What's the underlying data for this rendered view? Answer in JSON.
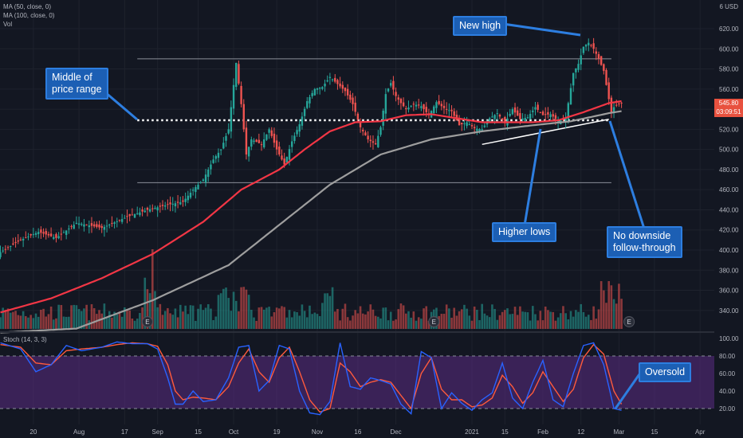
{
  "legend": {
    "ma50": "MA (50, close, 0)",
    "ma100": "MA (100, close, 0)",
    "vol": "Vol",
    "stoch": "Stoch (14, 3, 3)"
  },
  "currency": "USD",
  "price_tag": {
    "last_price": "545.80",
    "countdown": "03:09:51"
  },
  "annotations": {
    "middle_of_range": [
      "Middle of",
      "price range"
    ],
    "new_high": "New high",
    "higher_lows": "Higher lows",
    "no_downside": [
      "No downside",
      "follow-through"
    ],
    "oversold": "Oversold"
  },
  "earnings_marker": "E",
  "colors": {
    "up": "#26a69a",
    "down": "#ef5350",
    "ma50": "#f23645",
    "ma100": "#9e9e9e",
    "stoch_k": "#2962ff",
    "stoch_d": "#ff5a3c",
    "stoch_band": "#5b2c83",
    "callout_bg": "#1c5fb4",
    "background": "#131722"
  },
  "chart_data": {
    "type": "candlestick",
    "price_axis": {
      "range": [
        320,
        630
      ],
      "ticks": [
        340,
        360,
        380,
        400,
        420,
        440,
        460,
        480,
        500,
        520,
        540,
        560,
        580,
        600,
        620
      ]
    },
    "stoch_axis": {
      "range": [
        10,
        105
      ],
      "ticks": [
        20,
        40,
        60,
        80,
        100
      ],
      "bands": [
        20,
        80
      ]
    },
    "x_ticks": [
      "20",
      "Aug",
      "17",
      "Sep",
      "15",
      "Oct",
      "19",
      "Nov",
      "16",
      "Dec",
      "2021",
      "15",
      "Feb",
      "12",
      "Mar",
      "15",
      "Apr"
    ],
    "range_levels": {
      "upper": 590,
      "middle": 529,
      "lower": 467
    },
    "close_anchors": [
      [
        0,
        398
      ],
      [
        8,
        410
      ],
      [
        15,
        418
      ],
      [
        22,
        412
      ],
      [
        30,
        427
      ],
      [
        40,
        422
      ],
      [
        50,
        433
      ],
      [
        58,
        440
      ],
      [
        66,
        445
      ],
      [
        72,
        448
      ],
      [
        76,
        460
      ],
      [
        80,
        470
      ],
      [
        84,
        490
      ],
      [
        87,
        500
      ],
      [
        90,
        520
      ],
      [
        93,
        586
      ],
      [
        95,
        545
      ],
      [
        97,
        495
      ],
      [
        99,
        510
      ],
      [
        103,
        505
      ],
      [
        106,
        520
      ],
      [
        109,
        500
      ],
      [
        112,
        485
      ],
      [
        115,
        508
      ],
      [
        118,
        525
      ],
      [
        121,
        548
      ],
      [
        124,
        560
      ],
      [
        127,
        562
      ],
      [
        130,
        572
      ],
      [
        133,
        565
      ],
      [
        136,
        558
      ],
      [
        139,
        545
      ],
      [
        142,
        522
      ],
      [
        145,
        510
      ],
      [
        148,
        505
      ],
      [
        150,
        522
      ],
      [
        152,
        555
      ],
      [
        154,
        566
      ],
      [
        156,
        553
      ],
      [
        158,
        546
      ],
      [
        160,
        540
      ],
      [
        163,
        545
      ],
      [
        166,
        543
      ],
      [
        169,
        534
      ],
      [
        172,
        547
      ],
      [
        175,
        541
      ],
      [
        178,
        538
      ],
      [
        181,
        524
      ],
      [
        184,
        527
      ],
      [
        187,
        521
      ],
      [
        190,
        520
      ],
      [
        193,
        531
      ],
      [
        196,
        536
      ],
      [
        199,
        526
      ],
      [
        202,
        540
      ],
      [
        205,
        530
      ],
      [
        208,
        532
      ],
      [
        211,
        542
      ],
      [
        214,
        534
      ],
      [
        217,
        535
      ],
      [
        220,
        528
      ],
      [
        223,
        531
      ],
      [
        226,
        576
      ],
      [
        228,
        585
      ],
      [
        230,
        602
      ],
      [
        232,
        606
      ],
      [
        234,
        600
      ],
      [
        236,
        590
      ],
      [
        238,
        578
      ],
      [
        240,
        550
      ],
      [
        241,
        536
      ],
      [
        242,
        542
      ],
      [
        244,
        545
      ],
      [
        245,
        545.8
      ]
    ],
    "ma50_anchors": [
      [
        0,
        338
      ],
      [
        20,
        352
      ],
      [
        40,
        372
      ],
      [
        60,
        396
      ],
      [
        80,
        428
      ],
      [
        95,
        460
      ],
      [
        110,
        480
      ],
      [
        120,
        500
      ],
      [
        130,
        518
      ],
      [
        140,
        527
      ],
      [
        150,
        528
      ],
      [
        160,
        534
      ],
      [
        170,
        535
      ],
      [
        180,
        531
      ],
      [
        190,
        527
      ],
      [
        200,
        527
      ],
      [
        210,
        527
      ],
      [
        220,
        529
      ],
      [
        230,
        537
      ],
      [
        240,
        546
      ],
      [
        245,
        548
      ]
    ],
    "ma100_anchors": [
      [
        0,
        318
      ],
      [
        30,
        322
      ],
      [
        60,
        350
      ],
      [
        90,
        385
      ],
      [
        110,
        425
      ],
      [
        130,
        465
      ],
      [
        150,
        495
      ],
      [
        170,
        510
      ],
      [
        190,
        518
      ],
      [
        210,
        524
      ],
      [
        225,
        528
      ],
      [
        240,
        536
      ],
      [
        245,
        538
      ]
    ],
    "volume_notes": "Volume histogram colored by candle direction; spikes near Sep, Nov and Mar",
    "stoch_k_anchors": [
      [
        0,
        95
      ],
      [
        8,
        88
      ],
      [
        14,
        62
      ],
      [
        20,
        70
      ],
      [
        26,
        92
      ],
      [
        32,
        86
      ],
      [
        40,
        90
      ],
      [
        46,
        96
      ],
      [
        52,
        94
      ],
      [
        58,
        94
      ],
      [
        62,
        88
      ],
      [
        66,
        55
      ],
      [
        69,
        25
      ],
      [
        72,
        25
      ],
      [
        76,
        40
      ],
      [
        80,
        28
      ],
      [
        85,
        30
      ],
      [
        90,
        55
      ],
      [
        94,
        90
      ],
      [
        98,
        92
      ],
      [
        102,
        40
      ],
      [
        106,
        52
      ],
      [
        110,
        92
      ],
      [
        114,
        88
      ],
      [
        118,
        40
      ],
      [
        122,
        15
      ],
      [
        126,
        13
      ],
      [
        130,
        28
      ],
      [
        134,
        95
      ],
      [
        138,
        45
      ],
      [
        142,
        42
      ],
      [
        146,
        55
      ],
      [
        150,
        52
      ],
      [
        154,
        48
      ],
      [
        158,
        25
      ],
      [
        162,
        14
      ],
      [
        166,
        85
      ],
      [
        170,
        78
      ],
      [
        174,
        20
      ],
      [
        178,
        38
      ],
      [
        182,
        26
      ],
      [
        186,
        18
      ],
      [
        190,
        30
      ],
      [
        194,
        38
      ],
      [
        198,
        72
      ],
      [
        202,
        32
      ],
      [
        206,
        20
      ],
      [
        210,
        50
      ],
      [
        214,
        75
      ],
      [
        218,
        30
      ],
      [
        222,
        22
      ],
      [
        226,
        60
      ],
      [
        230,
        92
      ],
      [
        234,
        95
      ],
      [
        238,
        70
      ],
      [
        242,
        20
      ],
      [
        245,
        18
      ]
    ],
    "stoch_d_anchors": [
      [
        0,
        93
      ],
      [
        8,
        90
      ],
      [
        14,
        72
      ],
      [
        20,
        70
      ],
      [
        26,
        86
      ],
      [
        32,
        88
      ],
      [
        40,
        90
      ],
      [
        46,
        93
      ],
      [
        52,
        95
      ],
      [
        58,
        94
      ],
      [
        62,
        91
      ],
      [
        66,
        70
      ],
      [
        69,
        40
      ],
      [
        72,
        30
      ],
      [
        76,
        33
      ],
      [
        80,
        32
      ],
      [
        85,
        30
      ],
      [
        90,
        45
      ],
      [
        94,
        72
      ],
      [
        98,
        88
      ],
      [
        102,
        62
      ],
      [
        106,
        50
      ],
      [
        110,
        78
      ],
      [
        114,
        90
      ],
      [
        118,
        62
      ],
      [
        122,
        30
      ],
      [
        126,
        16
      ],
      [
        130,
        20
      ],
      [
        134,
        72
      ],
      [
        138,
        62
      ],
      [
        142,
        45
      ],
      [
        146,
        50
      ],
      [
        150,
        53
      ],
      [
        154,
        50
      ],
      [
        158,
        35
      ],
      [
        162,
        20
      ],
      [
        166,
        60
      ],
      [
        170,
        78
      ],
      [
        174,
        42
      ],
      [
        178,
        30
      ],
      [
        182,
        30
      ],
      [
        186,
        22
      ],
      [
        190,
        24
      ],
      [
        194,
        32
      ],
      [
        198,
        58
      ],
      [
        202,
        45
      ],
      [
        206,
        26
      ],
      [
        210,
        38
      ],
      [
        214,
        62
      ],
      [
        218,
        45
      ],
      [
        222,
        28
      ],
      [
        226,
        42
      ],
      [
        230,
        78
      ],
      [
        234,
        93
      ],
      [
        238,
        82
      ],
      [
        242,
        40
      ],
      [
        245,
        25
      ]
    ],
    "earnings_days": [
      58,
      171,
      248
    ]
  }
}
